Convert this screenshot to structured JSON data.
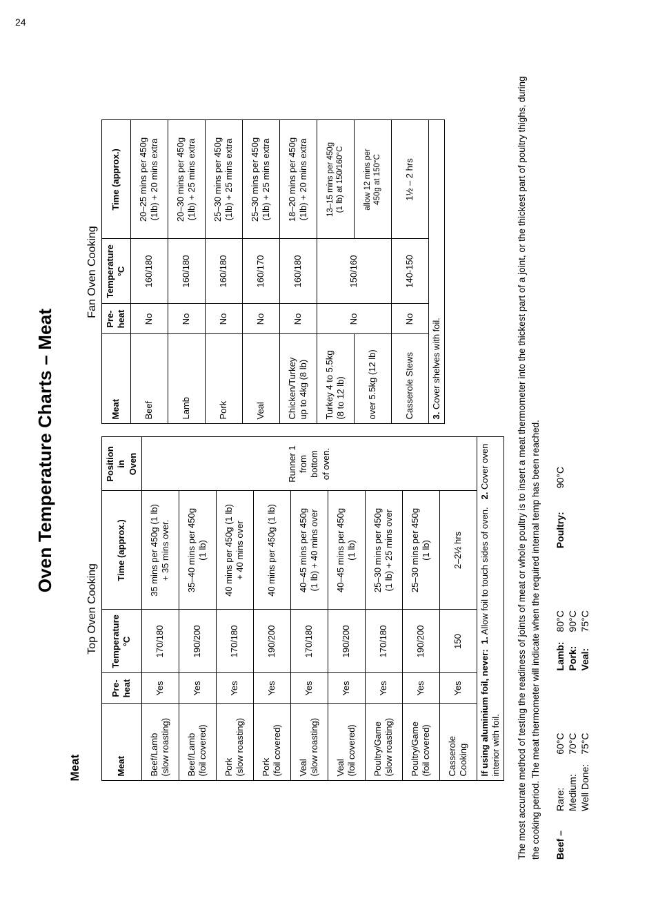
{
  "page_number": "24",
  "title": "Oven Temperature Charts – Meat",
  "section_heading": "Meat",
  "groups": {
    "top": "Top Oven Cooking",
    "fan": "Fan Oven Cooking"
  },
  "headers": {
    "meat": "Meat",
    "preheat": "Pre-\nheat",
    "temp": "Temperature\n°C",
    "time": "Time (approx.)",
    "position": "Position in\nOven"
  },
  "position_cell": "Runner 1\nfrom\nbottom\nof oven.",
  "top_rows": [
    {
      "meat": "Beef/Lamb\n(slow roasting)",
      "pre": "Yes",
      "temp": "170/180",
      "time": "35 mins per 450g (1 lb)\n+ 35 mins over."
    },
    {
      "meat": "Beef/Lamb\n(foil covered)",
      "pre": "Yes",
      "temp": "190/200",
      "time": "35–40 mins per 450g\n(1 lb)"
    },
    {
      "meat": "Pork\n(slow roasting)",
      "pre": "Yes",
      "temp": "170/180",
      "time": "40 mins per 450g (1 lb)\n+ 40 mins over"
    },
    {
      "meat": "Pork\n(foil covered)",
      "pre": "Yes",
      "temp": "190/200",
      "time": "40 mins per 450g (1 lb)"
    },
    {
      "meat": "Veal\n(slow roasting)",
      "pre": "Yes",
      "temp": "170/180",
      "time": "40–45 mins per 450g\n(1 lb) + 40 mins over"
    },
    {
      "meat": "Veal\n(foil covered)",
      "pre": "Yes",
      "temp": "190/200",
      "time": "40–45 mins per 450g\n(1 lb)"
    },
    {
      "meat": "Poultry/Game\n(slow roasting)",
      "pre": "Yes",
      "temp": "170/180",
      "time": "25–30 mins per 450g\n(1 lb) + 25 mins over"
    },
    {
      "meat": "Poultry/Game\n(foil covered)",
      "pre": "Yes",
      "temp": "190/200",
      "time": "25–30 mins per 450g\n(1 lb)"
    },
    {
      "meat": "Casserole\nCooking",
      "pre": "Yes",
      "temp": "150",
      "time": "2–2½ hrs"
    }
  ],
  "fan_rows": [
    {
      "meat": "Beef",
      "pre": "No",
      "temp": "160/180",
      "time": "20–25 mins per 450g\n(1lb) + 20 mins extra"
    },
    {
      "meat": "Lamb",
      "pre": "No",
      "temp": "160/180",
      "time": "20–30 mins per 450g\n(1lb) + 25 mins extra"
    },
    {
      "meat": "Pork",
      "pre": "No",
      "temp": "160/180",
      "time": "25–30 mins per 450g\n(1lb) + 25 mins extra"
    },
    {
      "meat": "Veal",
      "pre": "No",
      "temp": "160/170",
      "time": "25–30 mins per 450g\n(1lb) + 25 mins extra"
    },
    {
      "meat": "Chicken/Turkey\nup to 4kg (8 lb)",
      "pre": "No",
      "temp": "160/180",
      "time": "18–20 mins per 450g\n(1lb) + 20 mins extra"
    },
    {
      "meat": "Turkey 4 to 5.5kg\n(8 to 12 lb)",
      "pre": "No",
      "temp": "150/160",
      "time": "13–15 mins per 450g\n(1 lb) at 150/160°C",
      "split_next": true
    },
    {
      "meat": "over 5.5kg (12 lb)",
      "time": "allow 12 mins per\n450g at 150°C",
      "merge_prev": true
    },
    {
      "meat": "Casserole Stews",
      "pre": "No",
      "temp": "140-150",
      "time": "1½ – 2 hrs"
    }
  ],
  "foil_notes": {
    "lead": "If using aluminium foil, never:",
    "n1": "1.",
    "t1": "Allow foil to touch sides of oven.",
    "n2": "2.",
    "t2": "Cover oven interior with foil.",
    "n3": "3.",
    "t3": "Cover shelves with foil."
  },
  "para": "The most accurate method of testing the readiness of joints of meat or whole poultry is to insert a meat thermometer into the thickest part of a joint, or the thickest part of poultry thighs, during the cooking period. The meat thermometer will indicate when the required internal temp has been reached.",
  "doneness": {
    "beef_label": "Beef –",
    "beef": [
      [
        "Rare:",
        "60°C"
      ],
      [
        "Medium:",
        "70°C"
      ],
      [
        "Well Done:",
        "75°C"
      ]
    ],
    "mid": [
      [
        "Lamb:",
        "80°C"
      ],
      [
        "Pork:",
        "90°C"
      ],
      [
        "Veal:",
        "75°C"
      ]
    ],
    "poultry_label": "Poultry:",
    "poultry_temp": "90°C"
  }
}
